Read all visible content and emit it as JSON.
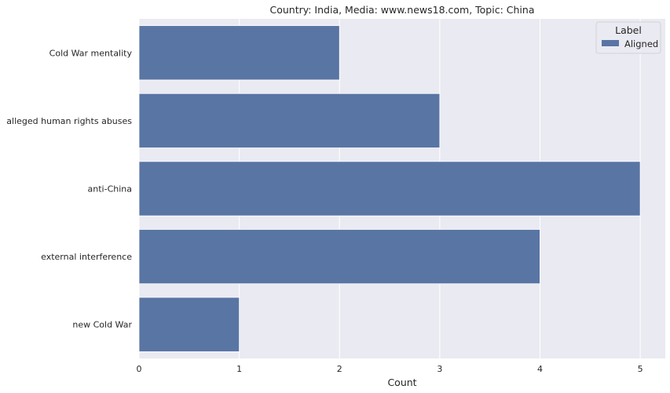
{
  "chart_data": {
    "type": "bar",
    "orientation": "horizontal",
    "title": "Country: India, Media: www.news18.com, Topic: China",
    "xlabel": "Count",
    "ylabel": "",
    "categories": [
      "Cold War mentality",
      "alleged human rights abuses",
      "anti-China",
      "external interference",
      "new Cold War"
    ],
    "series": [
      {
        "name": "Aligned",
        "values": [
          2,
          3,
          5,
          4,
          1
        ],
        "color": "#5975a4"
      }
    ],
    "xlim": [
      0,
      5.25
    ],
    "xticks": [
      "0",
      "1",
      "2",
      "3",
      "4",
      "5"
    ],
    "grid": true,
    "legend": {
      "title": "Label",
      "placement": "top-right"
    }
  },
  "colors": {
    "plot_background": "#eaeaf2",
    "grid": "#ffffff",
    "bar": "#5975a4"
  }
}
